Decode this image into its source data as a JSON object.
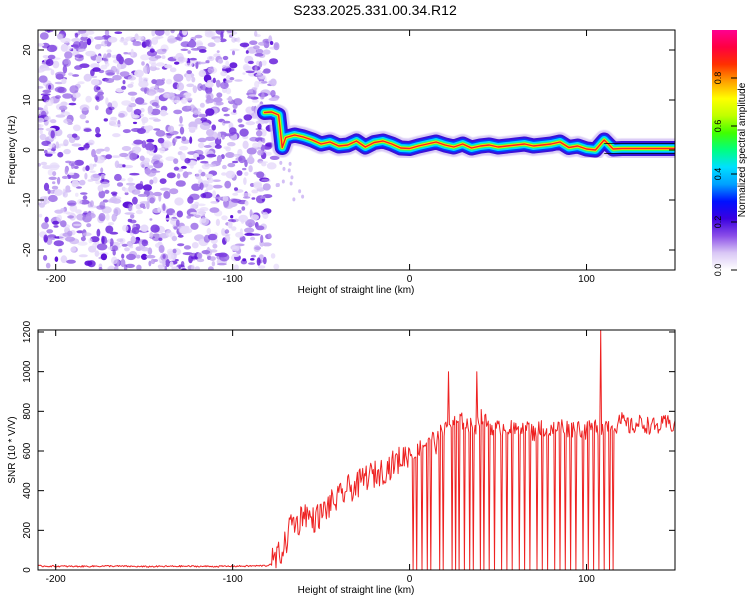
{
  "figure_title": "S233.2025.331.00.34.R12",
  "chart_data": [
    {
      "type": "heatmap",
      "name": "spectrogram",
      "xlabel": "Height of straight line (km)",
      "ylabel": "Frequency (Hz)",
      "xlim": [
        -210,
        150
      ],
      "ylim": [
        -24,
        24
      ],
      "xticks": [
        -200,
        -100,
        0,
        100
      ],
      "yticks": [
        -20,
        -10,
        0,
        10,
        20
      ],
      "colorbar": {
        "label": "Normalized spectral amplitude",
        "range": [
          0.0,
          1.0
        ],
        "ticks": [
          0.0,
          0.2,
          0.4,
          0.6,
          0.8
        ],
        "colors": [
          "#ffffff",
          "#d9c7f5",
          "#8a4de8",
          "#3a00e0",
          "#0010ff",
          "#00a0ff",
          "#00e0ff",
          "#00ff80",
          "#40ff00",
          "#c0ff00",
          "#ffff00",
          "#ffa000",
          "#ff3000",
          "#ff0040",
          "#ff0090"
        ]
      },
      "noise_region_km": [
        -210,
        -75
      ],
      "signal_track": {
        "x": [
          -82,
          -78,
          -74,
          -72,
          -70,
          -65,
          -60,
          -55,
          -50,
          -45,
          -40,
          -35,
          -30,
          -25,
          -20,
          -15,
          -10,
          -5,
          0,
          5,
          10,
          15,
          20,
          25,
          30,
          35,
          40,
          45,
          50,
          55,
          60,
          65,
          70,
          75,
          80,
          85,
          90,
          95,
          100,
          105,
          110,
          115,
          120,
          130,
          140,
          150
        ],
        "y": [
          7.5,
          7.6,
          7.0,
          0.5,
          2.5,
          3.0,
          2.6,
          2.0,
          1.2,
          1.6,
          0.8,
          1.0,
          1.8,
          0.6,
          1.5,
          1.8,
          1.2,
          0.4,
          0.3,
          0.8,
          1.2,
          1.6,
          1.0,
          0.6,
          1.2,
          0.4,
          0.8,
          1.0,
          0.6,
          0.8,
          1.0,
          1.2,
          0.8,
          1.0,
          1.2,
          1.6,
          0.5,
          0.8,
          0.2,
          0.0,
          2.0,
          0.2,
          0.3,
          0.3,
          0.3,
          0.3
        ]
      }
    },
    {
      "type": "line",
      "name": "snr",
      "xlabel": "Height of straight line (km)",
      "ylabel": "SNR (10 * V/V)",
      "xlim": [
        -210,
        150
      ],
      "ylim": [
        0,
        1210
      ],
      "xticks": [
        -200,
        -100,
        0,
        100
      ],
      "yticks": [
        0,
        200,
        400,
        600,
        800,
        1000,
        1200
      ],
      "series": [
        {
          "name": "SNR",
          "color": "#ee2222",
          "x": [
            -210,
            -190,
            -170,
            -150,
            -130,
            -110,
            -90,
            -80,
            -75,
            -70,
            -67,
            -63,
            -60,
            -55,
            -50,
            -45,
            -40,
            -35,
            -30,
            -25,
            -20,
            -15,
            -10,
            -5,
            0,
            3,
            6,
            9,
            12,
            15,
            18,
            20,
            22,
            25,
            30,
            35,
            38,
            40,
            45,
            50,
            55,
            60,
            65,
            70,
            75,
            80,
            85,
            90,
            95,
            100,
            105,
            108,
            110,
            115,
            120,
            125,
            130,
            135,
            140,
            145,
            150
          ],
          "values": [
            20,
            18,
            20,
            17,
            19,
            18,
            20,
            22,
            60,
            130,
            250,
            230,
            300,
            250,
            280,
            330,
            360,
            410,
            420,
            470,
            480,
            500,
            530,
            560,
            590,
            600,
            620,
            640,
            680,
            630,
            720,
            700,
            730,
            740,
            750,
            720,
            730,
            770,
            730,
            710,
            720,
            700,
            740,
            690,
            720,
            700,
            730,
            710,
            720,
            700,
            730,
            710,
            740,
            720,
            750,
            720,
            740,
            730,
            720,
            740,
            730
          ],
          "spikes": [
            {
              "x": 22,
              "y": 1000
            },
            {
              "x": 38,
              "y": 1000
            },
            {
              "x": 108,
              "y": 1210
            }
          ],
          "dropouts_x": [
            2,
            4,
            7,
            10,
            12,
            17,
            19,
            24,
            26,
            28,
            31,
            34,
            36,
            40,
            42,
            45,
            48,
            52,
            55,
            58,
            62,
            65,
            68,
            72,
            75,
            78,
            82,
            85,
            88,
            91,
            94,
            98,
            101,
            104,
            107,
            110,
            113,
            115
          ]
        }
      ]
    }
  ]
}
